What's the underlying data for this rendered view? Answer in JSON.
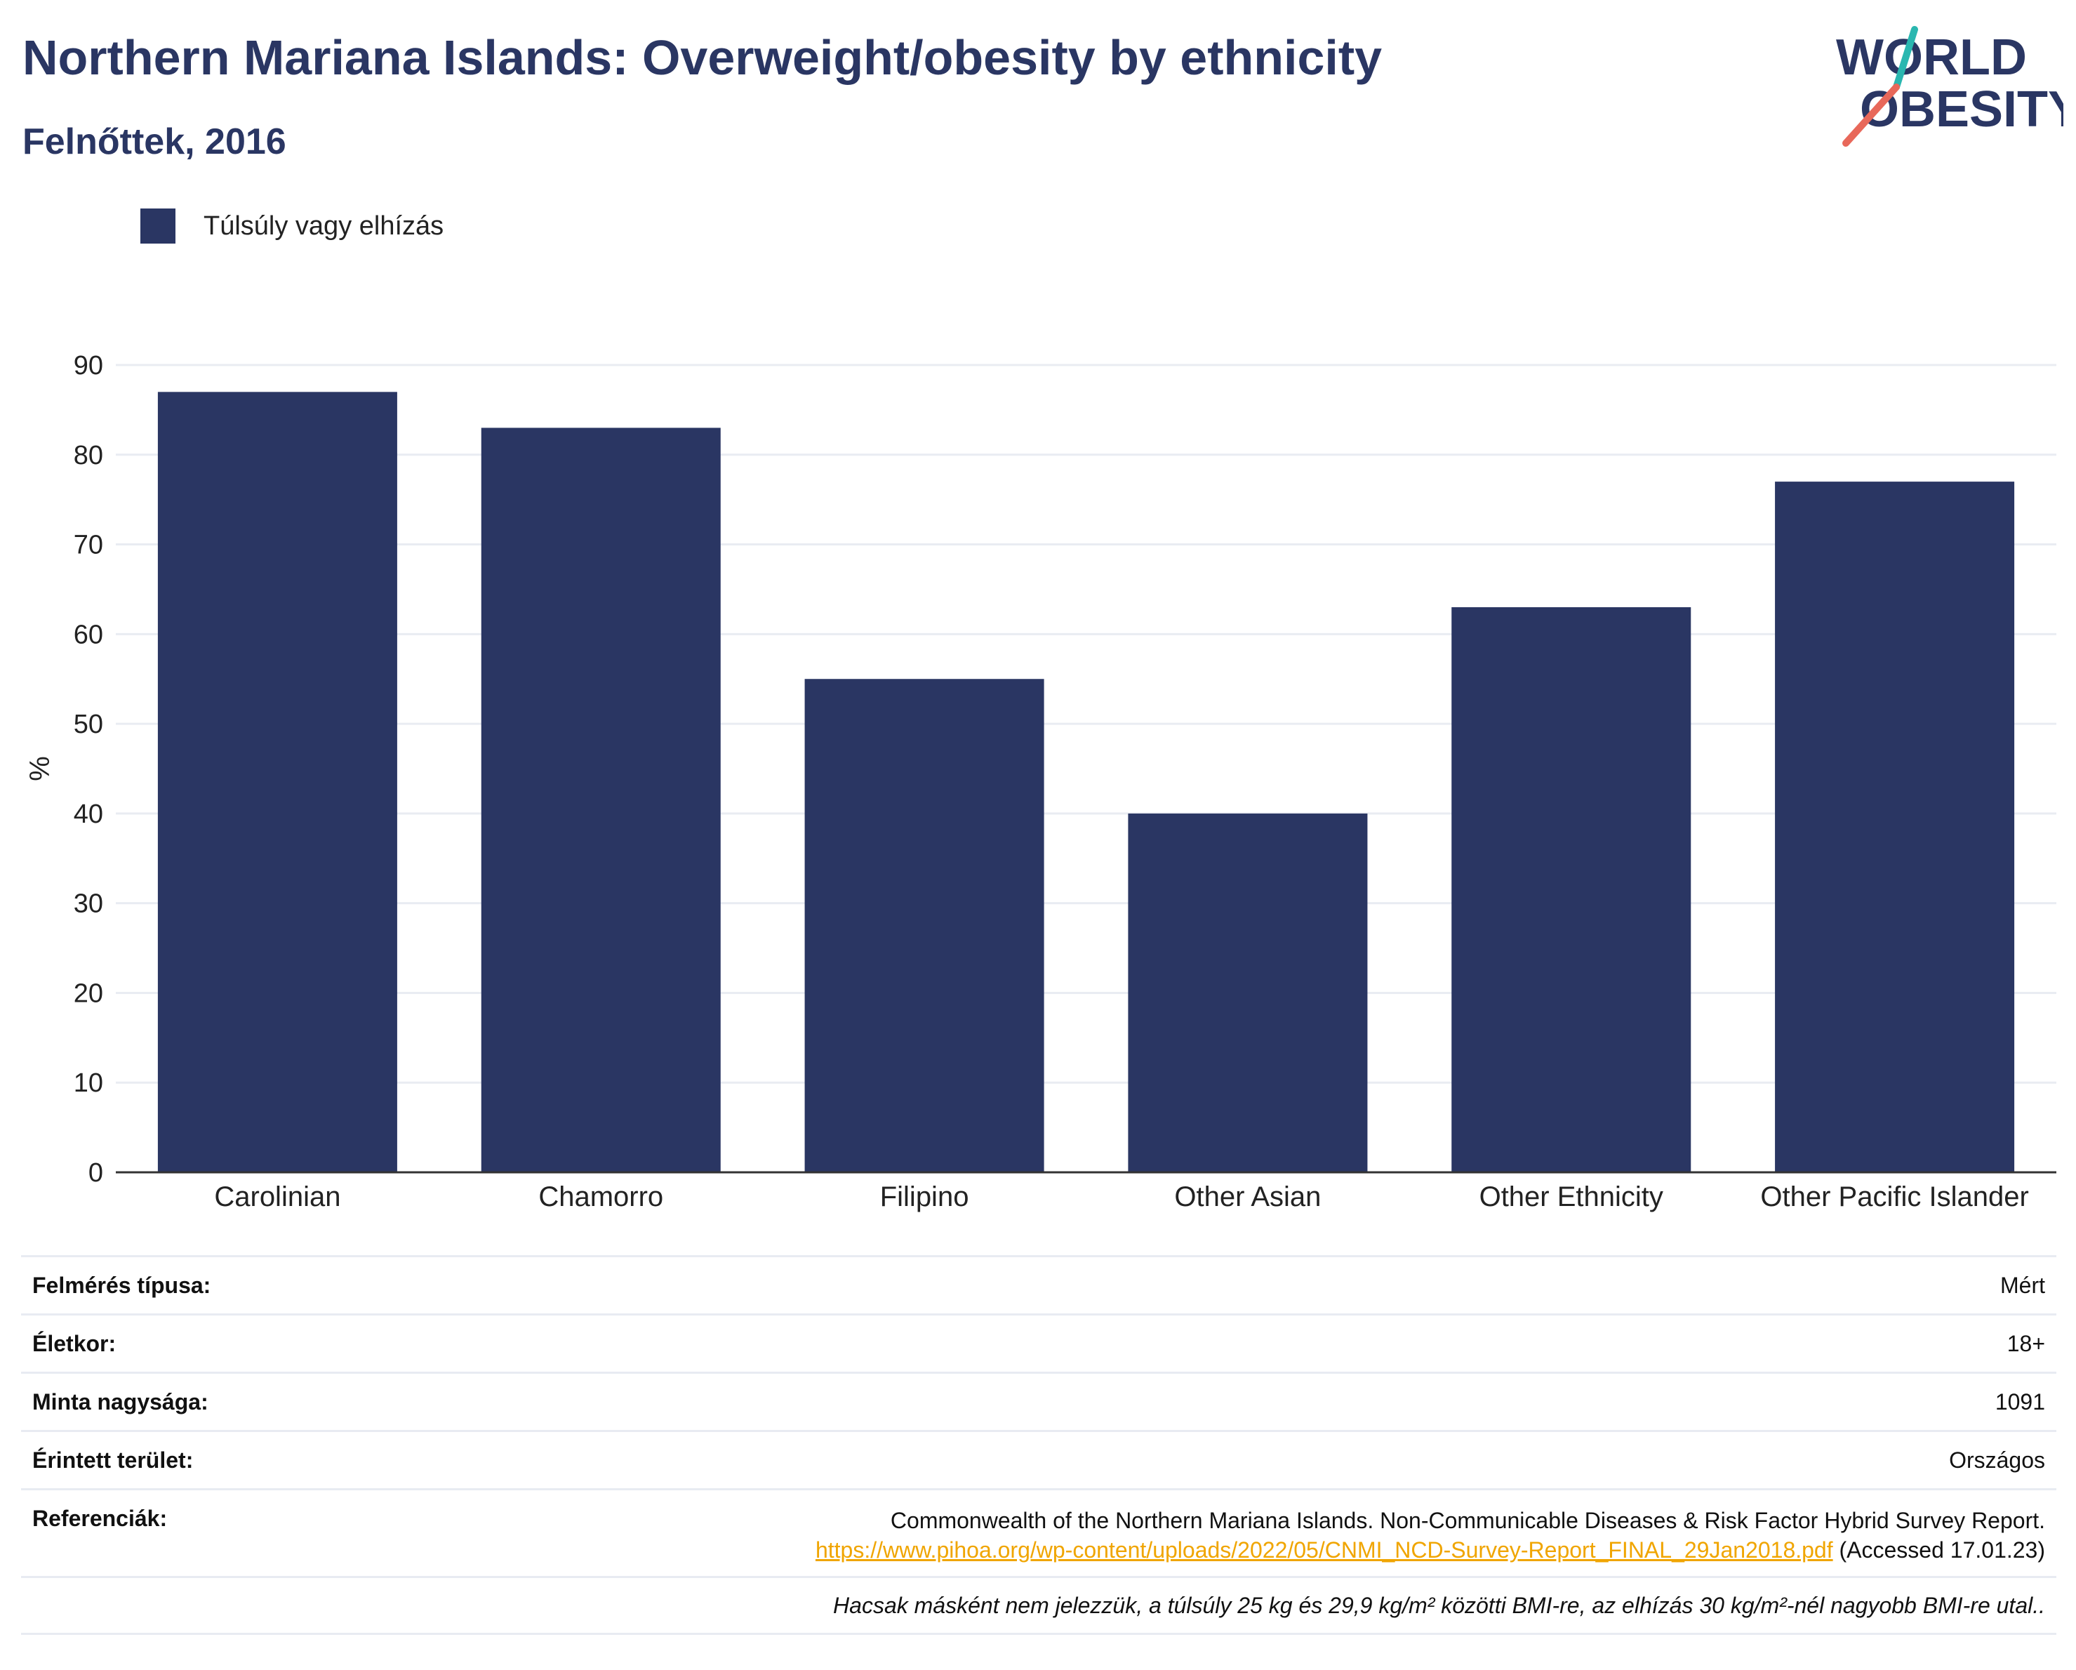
{
  "header": {
    "title": "Northern Mariana Islands: Overweight/obesity by ethnicity",
    "subtitle": "Felnőttek, 2016"
  },
  "logo": {
    "line1": "WORLD",
    "line2": "OBESITY",
    "color_primary": "#2a3663",
    "color_accent1": "#2ab7b0",
    "color_accent2": "#e8685a"
  },
  "legend": {
    "label": "Túlsúly vagy elhízás",
    "color": "#2a3663"
  },
  "chart_data": {
    "type": "bar",
    "categories": [
      "Carolinian",
      "Chamorro",
      "Filipino",
      "Other Asian",
      "Other Ethnicity",
      "Other Pacific Islander"
    ],
    "series": [
      {
        "name": "Túlsúly vagy elhízás",
        "values": [
          87,
          83,
          55,
          40,
          63,
          77
        ]
      }
    ],
    "title": "Northern Mariana Islands: Overweight/obesity by ethnicity",
    "ylabel": "%",
    "ylim": [
      0,
      90
    ],
    "yticks": [
      0,
      10,
      20,
      30,
      40,
      50,
      60,
      70,
      80,
      90
    ],
    "grid": true,
    "legend_position": "top-left",
    "bar_color": "#2a3663"
  },
  "info": {
    "survey_type_label": "Felmérés típusa:",
    "survey_type_value": "Mért",
    "age_label": "Életkor:",
    "age_value": "18+",
    "sample_label": "Minta nagysága:",
    "sample_value": "1091",
    "area_label": "Érintett terület:",
    "area_value": "Országos",
    "refs_label": "Referenciák:",
    "refs_line1": "Commonwealth of the Northern Mariana Islands. Non-Communicable Diseases & Risk Factor Hybrid Survey Report.",
    "refs_link": "https://www.pihoa.org/wp-content/uploads/2022/05/CNMI_NCD-Survey-Report_FINAL_29Jan2018.pdf",
    "refs_accessed": " (Accessed 17.01.23)",
    "note": "Hacsak másként nem jelezzük, a túlsúly 25 kg és 29,9 kg/m² közötti BMI-re, az elhízás 30 kg/m²-nél nagyobb BMI-re utal..",
    "link_color": "#f0a500"
  }
}
